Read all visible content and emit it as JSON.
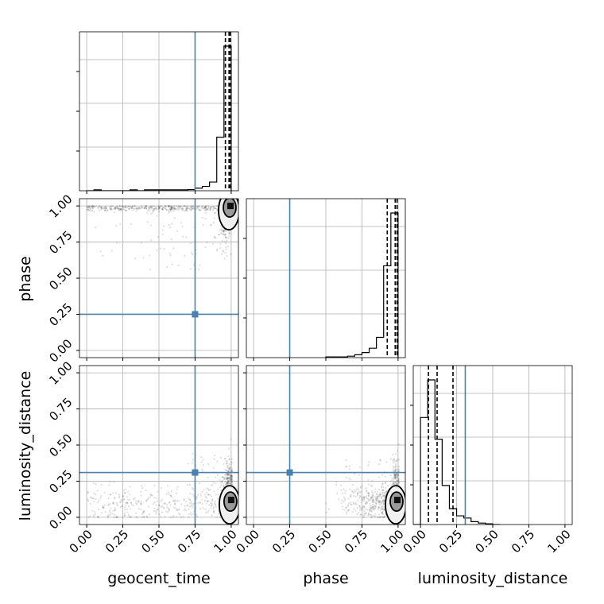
{
  "chart_data": {
    "type": "corner",
    "parameters": [
      "geocent_time",
      "phase",
      "luminosity_distance"
    ],
    "axis_ranges": {
      "geocent_time": [
        -0.05,
        1.05
      ],
      "phase": [
        -0.05,
        1.05
      ],
      "luminosity_distance": [
        -0.05,
        1.05
      ]
    },
    "tick_values": [
      0.0,
      0.25,
      0.5,
      0.75,
      1.0
    ],
    "tick_labels": [
      "0.00",
      "0.25",
      "0.50",
      "0.75",
      "1.00"
    ],
    "grid": true,
    "truths": {
      "geocent_time": 0.75,
      "phase": 0.25,
      "luminosity_distance": 0.31
    },
    "truth_color": "#4682b4",
    "histograms": {
      "geocent_time": {
        "bin_edges": [
          0,
          0.05,
          0.1,
          0.15,
          0.2,
          0.25,
          0.3,
          0.35,
          0.4,
          0.45,
          0.5,
          0.55,
          0.6,
          0.65,
          0.7,
          0.75,
          0.8,
          0.85,
          0.9,
          0.95,
          1.0
        ],
        "counts": [
          0,
          0.006,
          0,
          0,
          0,
          0,
          0.006,
          0,
          0.006,
          0.006,
          0.006,
          0.006,
          0.006,
          0.006,
          0.008,
          0.018,
          0.03,
          0.06,
          0.37,
          1.0
        ],
        "quantiles": [
          0.96,
          0.985,
          0.995
        ]
      },
      "phase": {
        "bin_edges": [
          0.5,
          0.55,
          0.6,
          0.65,
          0.7,
          0.75,
          0.8,
          0.85,
          0.9,
          0.95,
          1.0
        ],
        "counts": [
          0.005,
          0.005,
          0.005,
          0.01,
          0.02,
          0.035,
          0.065,
          0.14,
          0.635,
          1.0
        ],
        "quantiles": [
          0.925,
          0.98,
          0.993
        ]
      },
      "luminosity_distance": {
        "bin_edges": [
          -0.05,
          0.0,
          0.05,
          0.1,
          0.15,
          0.2,
          0.25,
          0.3,
          0.35,
          0.4,
          0.45,
          0.5,
          0.55
        ],
        "counts": [
          0.0,
          0.74,
          1.0,
          0.59,
          0.27,
          0.11,
          0.06,
          0.045,
          0.02,
          0.01,
          0.005,
          0.0
        ],
        "quantiles": [
          0.055,
          0.115,
          0.225
        ]
      }
    },
    "scatter_2d": [
      {
        "x": "geocent_time",
        "y": "phase",
        "posterior_mode": [
          0.995,
          1.0
        ]
      },
      {
        "x": "geocent_time",
        "y": "luminosity_distance",
        "posterior_mode": [
          1.0,
          0.12
        ]
      },
      {
        "x": "phase",
        "y": "luminosity_distance",
        "posterior_mode": [
          0.995,
          0.12
        ]
      }
    ]
  }
}
